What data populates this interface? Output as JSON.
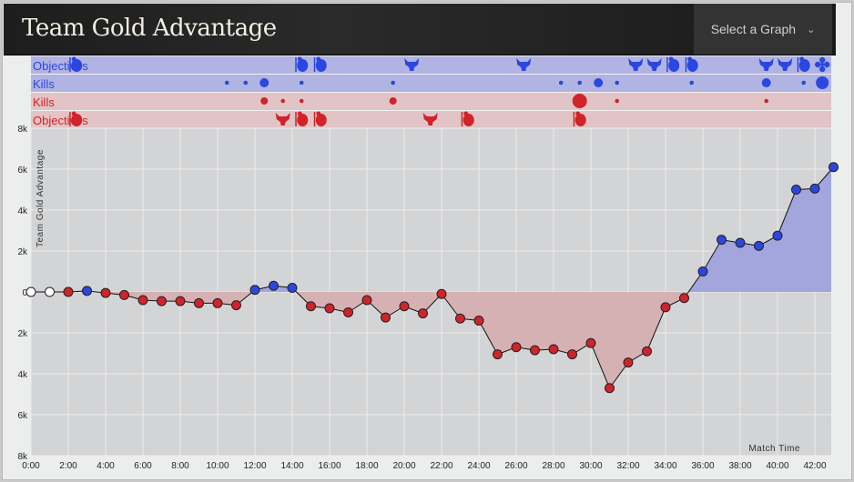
{
  "header": {
    "title": "Team Gold Advantage",
    "select_label": "Select a Graph"
  },
  "colors": {
    "blue": "#2b47e0",
    "red": "#d0232a",
    "blue_lane": "#b1b3e2",
    "red_lane": "#e2c4c6",
    "blue_fill": "#a3a6dc",
    "red_fill": "#d6b1b3",
    "plot_bg": "#d3d4d6"
  },
  "lanes": [
    {
      "label": "Objectives",
      "team": "blue"
    },
    {
      "label": "Kills",
      "team": "blue"
    },
    {
      "label": "Kills",
      "team": "red"
    },
    {
      "label": "Objectives",
      "team": "red"
    }
  ],
  "events": {
    "blue_objectives": [
      {
        "t": 2.4,
        "icon": "tower"
      },
      {
        "t": 14.5,
        "icon": "tower"
      },
      {
        "t": 15.5,
        "icon": "tower"
      },
      {
        "t": 20.4,
        "icon": "dragon"
      },
      {
        "t": 26.4,
        "icon": "dragon"
      },
      {
        "t": 32.4,
        "icon": "dragon"
      },
      {
        "t": 33.4,
        "icon": "dragon"
      },
      {
        "t": 34.4,
        "icon": "tower"
      },
      {
        "t": 35.4,
        "icon": "tower"
      },
      {
        "t": 39.4,
        "icon": "dragon"
      },
      {
        "t": 40.4,
        "icon": "dragon"
      },
      {
        "t": 41.4,
        "icon": "tower"
      },
      {
        "t": 42.4,
        "icon": "inhibitor"
      }
    ],
    "blue_kills": [
      {
        "t": 10.5,
        "n": 1
      },
      {
        "t": 11.5,
        "n": 1
      },
      {
        "t": 12.5,
        "n": 3
      },
      {
        "t": 14.5,
        "n": 1
      },
      {
        "t": 19.4,
        "n": 1
      },
      {
        "t": 28.4,
        "n": 1
      },
      {
        "t": 29.4,
        "n": 1
      },
      {
        "t": 30.4,
        "n": 3
      },
      {
        "t": 31.4,
        "n": 1
      },
      {
        "t": 35.4,
        "n": 1
      },
      {
        "t": 39.4,
        "n": 3
      },
      {
        "t": 41.4,
        "n": 1
      },
      {
        "t": 42.4,
        "n": 5
      }
    ],
    "red_kills": [
      {
        "t": 12.5,
        "n": 2
      },
      {
        "t": 13.5,
        "n": 1
      },
      {
        "t": 14.5,
        "n": 1
      },
      {
        "t": 19.4,
        "n": 2
      },
      {
        "t": 29.4,
        "n": 6
      },
      {
        "t": 31.4,
        "n": 1
      },
      {
        "t": 39.4,
        "n": 1
      }
    ],
    "red_objectives": [
      {
        "t": 2.4,
        "icon": "tower"
      },
      {
        "t": 13.5,
        "icon": "dragon"
      },
      {
        "t": 14.5,
        "icon": "tower"
      },
      {
        "t": 15.5,
        "icon": "tower"
      },
      {
        "t": 21.4,
        "icon": "dragon"
      },
      {
        "t": 23.4,
        "icon": "tower"
      },
      {
        "t": 29.4,
        "icon": "tower"
      }
    ]
  },
  "chart_data": {
    "type": "line",
    "title": "Team Gold Advantage",
    "ylabel": "Team Gold Advantage",
    "xlabel": "Match Time",
    "ylim": [
      -8000,
      8000
    ],
    "xlim": [
      0,
      43
    ],
    "y_ticks": [
      {
        "v": 8000,
        "label": "8k"
      },
      {
        "v": 6000,
        "label": "6k"
      },
      {
        "v": 4000,
        "label": "4k"
      },
      {
        "v": 2000,
        "label": "2k"
      },
      {
        "v": 0,
        "label": "0"
      },
      {
        "v": -2000,
        "label": "2k"
      },
      {
        "v": -4000,
        "label": "4k"
      },
      {
        "v": -6000,
        "label": "6k"
      },
      {
        "v": -8000,
        "label": "8k"
      }
    ],
    "x_ticks": [
      "0:00",
      "2:00",
      "4:00",
      "6:00",
      "8:00",
      "10:00",
      "12:00",
      "14:00",
      "16:00",
      "18:00",
      "20:00",
      "22:00",
      "24:00",
      "26:00",
      "28:00",
      "30:00",
      "32:00",
      "34:00",
      "36:00",
      "38:00",
      "40:00",
      "42:00"
    ],
    "grid": true,
    "minutes": [
      0,
      1,
      2,
      3,
      4,
      5,
      6,
      7,
      8,
      9,
      10,
      11,
      12,
      13,
      14,
      15,
      16,
      17,
      18,
      19,
      20,
      21,
      22,
      23,
      24,
      25,
      26,
      27,
      28,
      29,
      30,
      31,
      32,
      33,
      34,
      35,
      36,
      37,
      38,
      39,
      40,
      41,
      42,
      43
    ],
    "values": [
      0,
      0,
      0,
      50,
      -50,
      -150,
      -400,
      -450,
      -450,
      -550,
      -550,
      -650,
      100,
      300,
      200,
      -700,
      -800,
      -1000,
      -400,
      -1250,
      -700,
      -1050,
      -100,
      -1300,
      -1400,
      -3050,
      -2700,
      -2850,
      -2800,
      -3050,
      -2500,
      -4700,
      -3450,
      -2900,
      -750,
      -300,
      1000,
      2550,
      2400,
      2250,
      2750,
      5000,
      5050,
      6100
    ]
  }
}
